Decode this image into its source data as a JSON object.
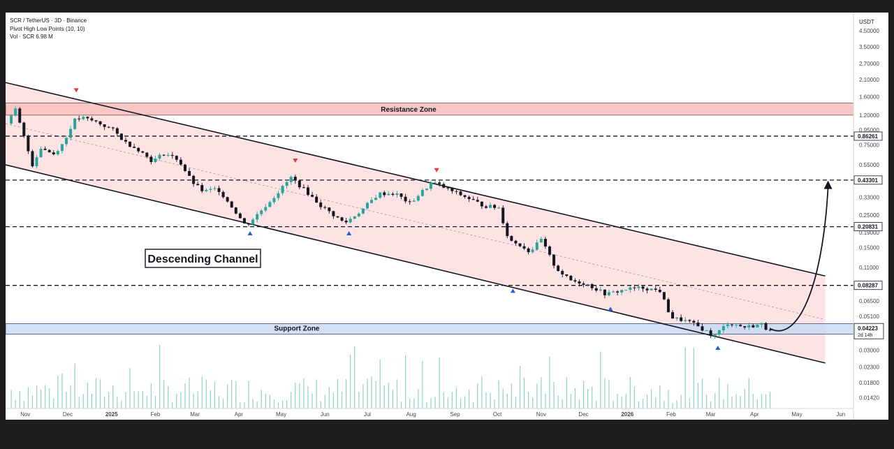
{
  "header": {
    "symbol_line": "SCR / TetherUS · 3D · Binance",
    "indicator_line": "Pivot High Low Points (10, 10)",
    "volume_line": "Vol · SCR  6.98 M"
  },
  "currency_label": "USDT",
  "annotations": {
    "resistance": "Resistance Zone",
    "support": "Support Zone",
    "channel": "Descending Channel",
    "countdown": "2d 14h"
  },
  "colors": {
    "up": "#26a69a",
    "down": "#131722",
    "channel_fill": "#fde3e3",
    "resistance_fill": "#f9c6c6",
    "support_fill": "#c9daf5",
    "pivot_high": "#e53935",
    "pivot_low": "#1e5fe0",
    "volume": "#8fd3c7"
  },
  "chart_data": {
    "type": "candlestick",
    "y_scale": "log",
    "ylim": [
      0.012,
      6.0
    ],
    "xlim": [
      "2024-10-18",
      "2026-06-10"
    ],
    "y_tick_labels": [
      "4.50000",
      "3.50000",
      "2.70000",
      "2.10000",
      "1.60000",
      "1.20000",
      "0.95000",
      "0.75000",
      "0.55000",
      "0.33000",
      "0.25000",
      "0.19000",
      "0.15000",
      "0.11000",
      "0.06500",
      "0.05100",
      "0.03000",
      "0.02300",
      "0.01800",
      "0.01420"
    ],
    "x_tick_labels": [
      {
        "label": "Nov",
        "date": "2024-11-01"
      },
      {
        "label": "Dec",
        "date": "2024-12-01"
      },
      {
        "label": "2025",
        "date": "2025-01-01"
      },
      {
        "label": "Feb",
        "date": "2025-02-01"
      },
      {
        "label": "Mar",
        "date": "2025-03-01"
      },
      {
        "label": "Apr",
        "date": "2025-04-01"
      },
      {
        "label": "May",
        "date": "2025-05-01"
      },
      {
        "label": "Jun",
        "date": "2025-06-01"
      },
      {
        "label": "Jul",
        "date": "2025-07-01"
      },
      {
        "label": "Aug",
        "date": "2025-08-01"
      },
      {
        "label": "Sep",
        "date": "2025-09-01"
      },
      {
        "label": "Oct",
        "date": "2025-10-01"
      },
      {
        "label": "Nov",
        "date": "2025-11-01"
      },
      {
        "label": "Dec",
        "date": "2025-12-01"
      },
      {
        "label": "2026",
        "date": "2026-01-01"
      },
      {
        "label": "Feb",
        "date": "2026-02-01"
      },
      {
        "label": "Mar",
        "date": "2026-03-01"
      },
      {
        "label": "Apr",
        "date": "2026-04-01"
      },
      {
        "label": "May",
        "date": "2026-05-01"
      },
      {
        "label": "Jun",
        "date": "2026-06-01"
      }
    ],
    "highlighted_levels": [
      {
        "label": "0.86261",
        "value": 0.86261
      },
      {
        "label": "0.43301",
        "value": 0.43301
      },
      {
        "label": "0.20831",
        "value": 0.20831
      },
      {
        "label": "0.08287",
        "value": 0.08287
      }
    ],
    "last_price": {
      "label": "0.04223",
      "value": 0.04223
    },
    "zones": {
      "resistance": {
        "low": 1.2,
        "high": 1.45
      },
      "support": {
        "low": 0.0385,
        "high": 0.0455
      }
    },
    "channel": {
      "upper": [
        {
          "date": "2024-10-18",
          "value": 2.0
        },
        {
          "date": "2026-05-21",
          "value": 0.096
        }
      ],
      "lower": [
        {
          "date": "2024-10-18",
          "value": 0.55
        },
        {
          "date": "2026-05-21",
          "value": 0.0245
        }
      ]
    },
    "projection": {
      "from": {
        "date": "2026-04-12",
        "value": 0.042
      },
      "to": {
        "date": "2026-05-23",
        "value": 0.42
      }
    },
    "pivot_highs": [
      {
        "date": "2024-12-07",
        "value": 1.75
      },
      {
        "date": "2025-05-11",
        "value": 0.58
      },
      {
        "date": "2025-08-19",
        "value": 0.5
      }
    ],
    "pivot_lows": [
      {
        "date": "2025-04-09",
        "value": 0.19
      },
      {
        "date": "2025-06-18",
        "value": 0.19
      },
      {
        "date": "2025-10-12",
        "value": 0.077
      },
      {
        "date": "2025-12-20",
        "value": 0.058
      },
      {
        "date": "2026-03-06",
        "value": 0.0315
      }
    ],
    "price_path": [
      {
        "date": "2024-10-22",
        "value": 1.05
      },
      {
        "date": "2024-10-28",
        "value": 1.3
      },
      {
        "date": "2024-11-03",
        "value": 0.85
      },
      {
        "date": "2024-11-09",
        "value": 0.55
      },
      {
        "date": "2024-11-15",
        "value": 0.72
      },
      {
        "date": "2024-11-24",
        "value": 0.65
      },
      {
        "date": "2024-12-02",
        "value": 0.8
      },
      {
        "date": "2024-12-08",
        "value": 1.1
      },
      {
        "date": "2024-12-14",
        "value": 1.15
      },
      {
        "date": "2024-12-24",
        "value": 1.08
      },
      {
        "date": "2025-01-05",
        "value": 0.95
      },
      {
        "date": "2025-01-14",
        "value": 0.78
      },
      {
        "date": "2025-01-23",
        "value": 0.7
      },
      {
        "date": "2025-02-02",
        "value": 0.58
      },
      {
        "date": "2025-02-10",
        "value": 0.66
      },
      {
        "date": "2025-02-20",
        "value": 0.6
      },
      {
        "date": "2025-03-02",
        "value": 0.42
      },
      {
        "date": "2025-03-10",
        "value": 0.36
      },
      {
        "date": "2025-03-20",
        "value": 0.38
      },
      {
        "date": "2025-04-01",
        "value": 0.27
      },
      {
        "date": "2025-04-09",
        "value": 0.21
      },
      {
        "date": "2025-04-20",
        "value": 0.27
      },
      {
        "date": "2025-05-01",
        "value": 0.35
      },
      {
        "date": "2025-05-11",
        "value": 0.45
      },
      {
        "date": "2025-05-22",
        "value": 0.36
      },
      {
        "date": "2025-06-01",
        "value": 0.29
      },
      {
        "date": "2025-06-18",
        "value": 0.22
      },
      {
        "date": "2025-06-30",
        "value": 0.27
      },
      {
        "date": "2025-07-12",
        "value": 0.35
      },
      {
        "date": "2025-07-24",
        "value": 0.35
      },
      {
        "date": "2025-08-03",
        "value": 0.3
      },
      {
        "date": "2025-08-19",
        "value": 0.42
      },
      {
        "date": "2025-08-31",
        "value": 0.37
      },
      {
        "date": "2025-09-12",
        "value": 0.33
      },
      {
        "date": "2025-09-24",
        "value": 0.29
      },
      {
        "date": "2025-10-05",
        "value": 0.28
      },
      {
        "date": "2025-10-12",
        "value": 0.17
      },
      {
        "date": "2025-10-21",
        "value": 0.155
      },
      {
        "date": "2025-10-27",
        "value": 0.14
      },
      {
        "date": "2025-11-04",
        "value": 0.17
      },
      {
        "date": "2025-11-14",
        "value": 0.11
      },
      {
        "date": "2025-11-24",
        "value": 0.09
      },
      {
        "date": "2025-12-06",
        "value": 0.085
      },
      {
        "date": "2025-12-20",
        "value": 0.072
      },
      {
        "date": "2026-01-03",
        "value": 0.078
      },
      {
        "date": "2026-01-15",
        "value": 0.08
      },
      {
        "date": "2026-01-27",
        "value": 0.076
      },
      {
        "date": "2026-02-04",
        "value": 0.05
      },
      {
        "date": "2026-02-16",
        "value": 0.047
      },
      {
        "date": "2026-02-28",
        "value": 0.041
      },
      {
        "date": "2026-03-06",
        "value": 0.037
      },
      {
        "date": "2026-03-16",
        "value": 0.046
      },
      {
        "date": "2026-03-28",
        "value": 0.043
      },
      {
        "date": "2026-04-09",
        "value": 0.045
      },
      {
        "date": "2026-04-12",
        "value": 0.0422
      }
    ],
    "series": [
      {
        "name": "SCR / TetherUS",
        "type": "candlestick"
      },
      {
        "name": "Vol · SCR",
        "type": "volume"
      }
    ]
  }
}
